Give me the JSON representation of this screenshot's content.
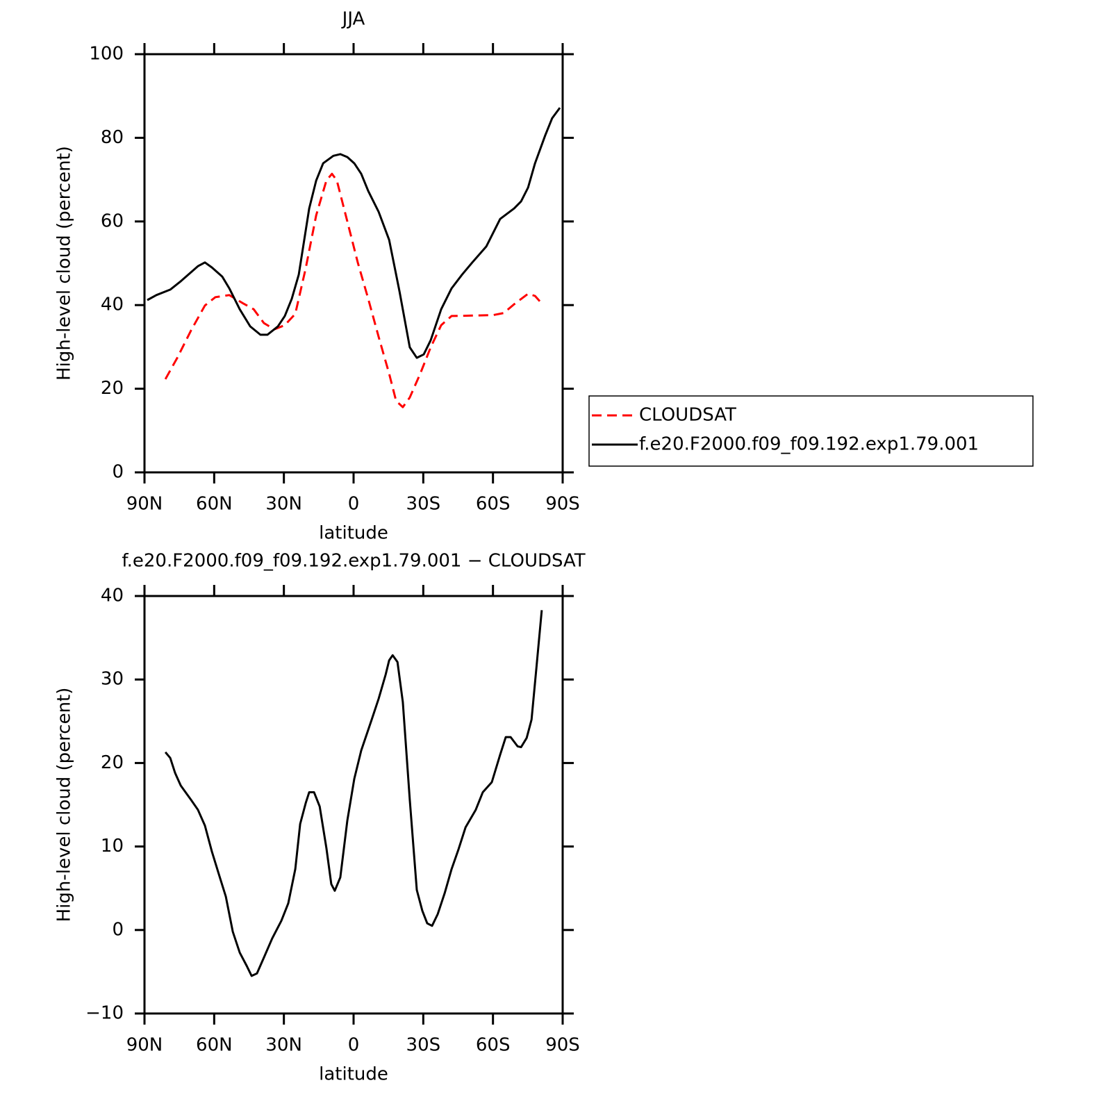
{
  "chart_data": [
    {
      "type": "line",
      "title": "JJA",
      "xlabel": "latitude",
      "ylabel": "High-level cloud (percent)",
      "xlim": [
        90,
        -90
      ],
      "xticks": [
        {
          "value": 90,
          "label": "90N"
        },
        {
          "value": 60,
          "label": "60N"
        },
        {
          "value": 30,
          "label": "30N"
        },
        0,
        {
          "value": -30,
          "label": "30S"
        },
        {
          "value": -60,
          "label": "60S"
        },
        {
          "value": -90,
          "label": "90S"
        }
      ],
      "ylim": [
        0,
        100
      ],
      "yticks": [
        0,
        20,
        40,
        60,
        80,
        100
      ],
      "legend": "right",
      "series": [
        {
          "name": "CLOUDSAT",
          "color": "#ff0000",
          "dash": true,
          "x": [
            81.0,
            75.9,
            70.0,
            64.0,
            59.5,
            53.5,
            47.5,
            43.0,
            38.6,
            34.1,
            29.6,
            25.1,
            20.6,
            16.1,
            11.7,
            9.3,
            7.2,
            2.7,
            -1.8,
            -6.3,
            -10.8,
            -15.3,
            -18.3,
            -21.2,
            -24.2,
            -28.7,
            -33.2,
            -37.7,
            -42.2,
            -51.1,
            -60.1,
            -64.6,
            -69.1,
            -75.1,
            -78.1,
            -81.0
          ],
          "values": [
            22.3,
            27.4,
            33.9,
            39.9,
            41.9,
            42.4,
            40.4,
            39.0,
            35.7,
            34.2,
            35.2,
            37.9,
            48.8,
            61.5,
            69.8,
            71.4,
            69.8,
            60.0,
            50.2,
            41.5,
            32.4,
            23.6,
            17.1,
            15.6,
            17.9,
            23.6,
            29.9,
            35.2,
            37.4,
            37.5,
            37.6,
            38.1,
            40.2,
            42.7,
            42.2,
            40.4
          ]
        },
        {
          "name": "f.e20.F2000.f09_f09.192.exp1.79.001",
          "color": "#000000",
          "dash": false,
          "x": [
            88.8,
            84.9,
            78.9,
            74.4,
            67.0,
            64.0,
            61.0,
            56.5,
            53.5,
            49.0,
            44.5,
            40.1,
            37.1,
            32.6,
            29.6,
            26.6,
            23.6,
            19.1,
            16.1,
            13.1,
            8.7,
            5.7,
            2.7,
            -0.3,
            -3.3,
            -6.3,
            -10.8,
            -15.3,
            -19.8,
            -24.2,
            -27.2,
            -30.2,
            -33.2,
            -37.7,
            -42.2,
            -46.7,
            -51.1,
            -57.1,
            -63.1,
            -69.1,
            -72.1,
            -75.1,
            -78.1,
            -82.5,
            -85.5,
            -88.8
          ],
          "values": [
            41.2,
            42.4,
            43.7,
            45.7,
            49.3,
            50.2,
            49.0,
            46.8,
            44.0,
            39.0,
            34.9,
            32.9,
            32.9,
            34.9,
            37.4,
            41.5,
            47.3,
            63.1,
            69.8,
            73.9,
            75.7,
            76.1,
            75.4,
            73.9,
            71.4,
            67.3,
            62.3,
            55.6,
            43.2,
            29.9,
            27.4,
            28.2,
            31.6,
            39.0,
            44.0,
            47.3,
            50.2,
            54.0,
            60.6,
            63.1,
            64.8,
            68.1,
            73.9,
            80.6,
            84.7,
            87.2
          ]
        }
      ]
    },
    {
      "type": "line",
      "title": "f.e20.F2000.f09_f09.192.exp1.79.001 − CLOUDSAT",
      "xlabel": "latitude",
      "ylabel": "High-level cloud (percent)",
      "xlim": [
        90,
        -90
      ],
      "xticks": [
        {
          "value": 90,
          "label": "90N"
        },
        {
          "value": 60,
          "label": "60N"
        },
        {
          "value": 30,
          "label": "30N"
        },
        0,
        {
          "value": -30,
          "label": "30S"
        },
        {
          "value": -60,
          "label": "60S"
        },
        {
          "value": -90,
          "label": "90S"
        }
      ],
      "ylim": [
        -10,
        40
      ],
      "yticks": [
        {
          "value": -10,
          "label": "−10"
        },
        0,
        10,
        20,
        30,
        40
      ],
      "series": [
        {
          "color": "#000000",
          "dash": false,
          "x": [
            81.0,
            78.9,
            76.8,
            74.4,
            70.0,
            67.0,
            64.0,
            61.0,
            58.0,
            55.0,
            52.0,
            49.0,
            46.0,
            43.9,
            41.6,
            38.6,
            35.0,
            31.1,
            28.1,
            25.1,
            23.0,
            20.6,
            19.1,
            17.0,
            14.6,
            11.7,
            9.6,
            8.1,
            5.7,
            2.7,
            -0.3,
            -3.3,
            -7.8,
            -10.8,
            -13.8,
            -15.3,
            -16.8,
            -18.9,
            -21.2,
            -24.2,
            -27.2,
            -29.6,
            -31.7,
            -33.8,
            -36.2,
            -39.2,
            -42.2,
            -45.2,
            -48.2,
            -52.6,
            -55.6,
            -59.5,
            -63.1,
            -65.5,
            -67.6,
            -70.6,
            -72.1,
            -74.5,
            -76.6,
            -78.7,
            -81.0
          ],
          "values": [
            21.3,
            20.6,
            18.8,
            17.3,
            15.6,
            14.4,
            12.5,
            9.4,
            6.7,
            4.0,
            -0.2,
            -2.7,
            -4.3,
            -5.5,
            -5.2,
            -3.3,
            -1.0,
            1.1,
            3.2,
            7.3,
            12.7,
            15.2,
            16.5,
            16.5,
            14.8,
            9.8,
            5.5,
            4.7,
            6.3,
            13.1,
            18.1,
            21.5,
            25.2,
            27.7,
            30.6,
            32.3,
            32.9,
            32.1,
            27.3,
            15.6,
            4.8,
            2.3,
            0.8,
            0.5,
            1.9,
            4.4,
            7.3,
            9.7,
            12.3,
            14.4,
            16.5,
            17.7,
            21.0,
            23.1,
            23.1,
            22.0,
            21.9,
            23.0,
            25.2,
            31.4,
            38.3
          ]
        }
      ]
    }
  ]
}
